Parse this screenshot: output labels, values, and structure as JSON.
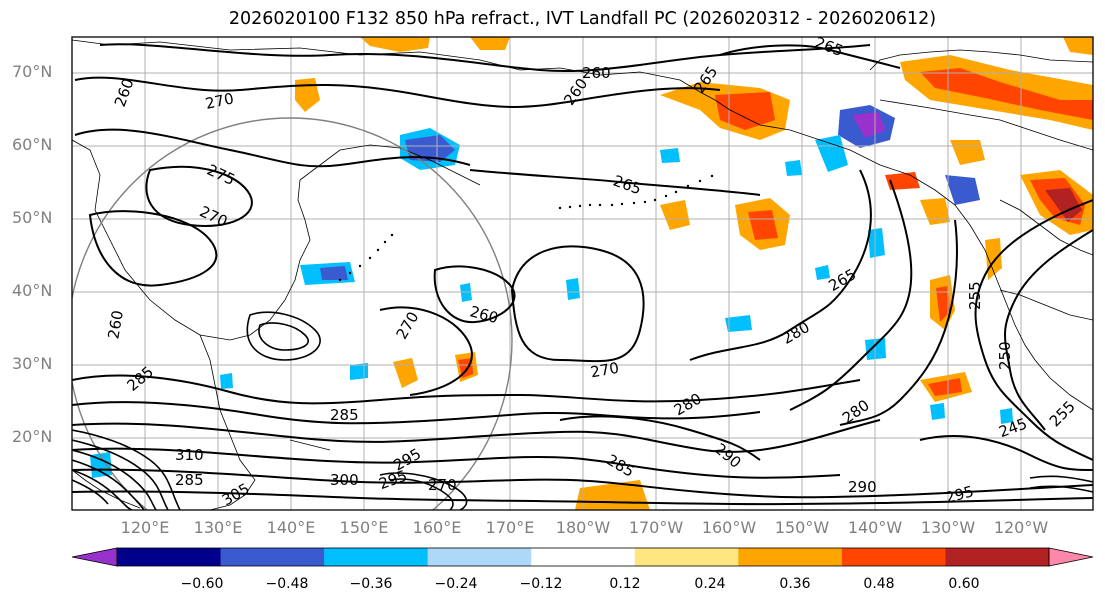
{
  "title": "2026020100 F132 850 hPa refract., IVT Landfall PC (2026020312 - 2026020612)",
  "lat_labels": [
    "70°N",
    "60°N",
    "50°N",
    "40°N",
    "30°N",
    "20°N"
  ],
  "lon_labels": [
    "120°E",
    "130°E",
    "140°E",
    "150°E",
    "160°E",
    "170°E",
    "180°W",
    "170°W",
    "160°W",
    "150°W",
    "140°W",
    "130°W",
    "120°W"
  ],
  "contour_labels": [
    "260",
    "270",
    "275",
    "270",
    "260",
    "265",
    "260",
    "255",
    "265",
    "265",
    "265",
    "255",
    "250",
    "245",
    "255",
    "260",
    "260",
    "270",
    "270",
    "280",
    "280",
    "285",
    "285",
    "285",
    "290",
    "295",
    "295",
    "300",
    "305",
    "310",
    "285",
    "290",
    "295"
  ],
  "colorbar": {
    "ticks": [
      "−0.60",
      "−0.48",
      "−0.36",
      "−0.24",
      "−0.12",
      "0.12",
      "0.24",
      "0.36",
      "0.48",
      "0.60"
    ],
    "colors": [
      "#9932cc",
      "#00008b",
      "#3a5bd0",
      "#00bfff",
      "#add8f8",
      "#ffffff",
      "#ffe680",
      "#ffa500",
      "#ff4500",
      "#b22222",
      "#ff88aa"
    ]
  }
}
